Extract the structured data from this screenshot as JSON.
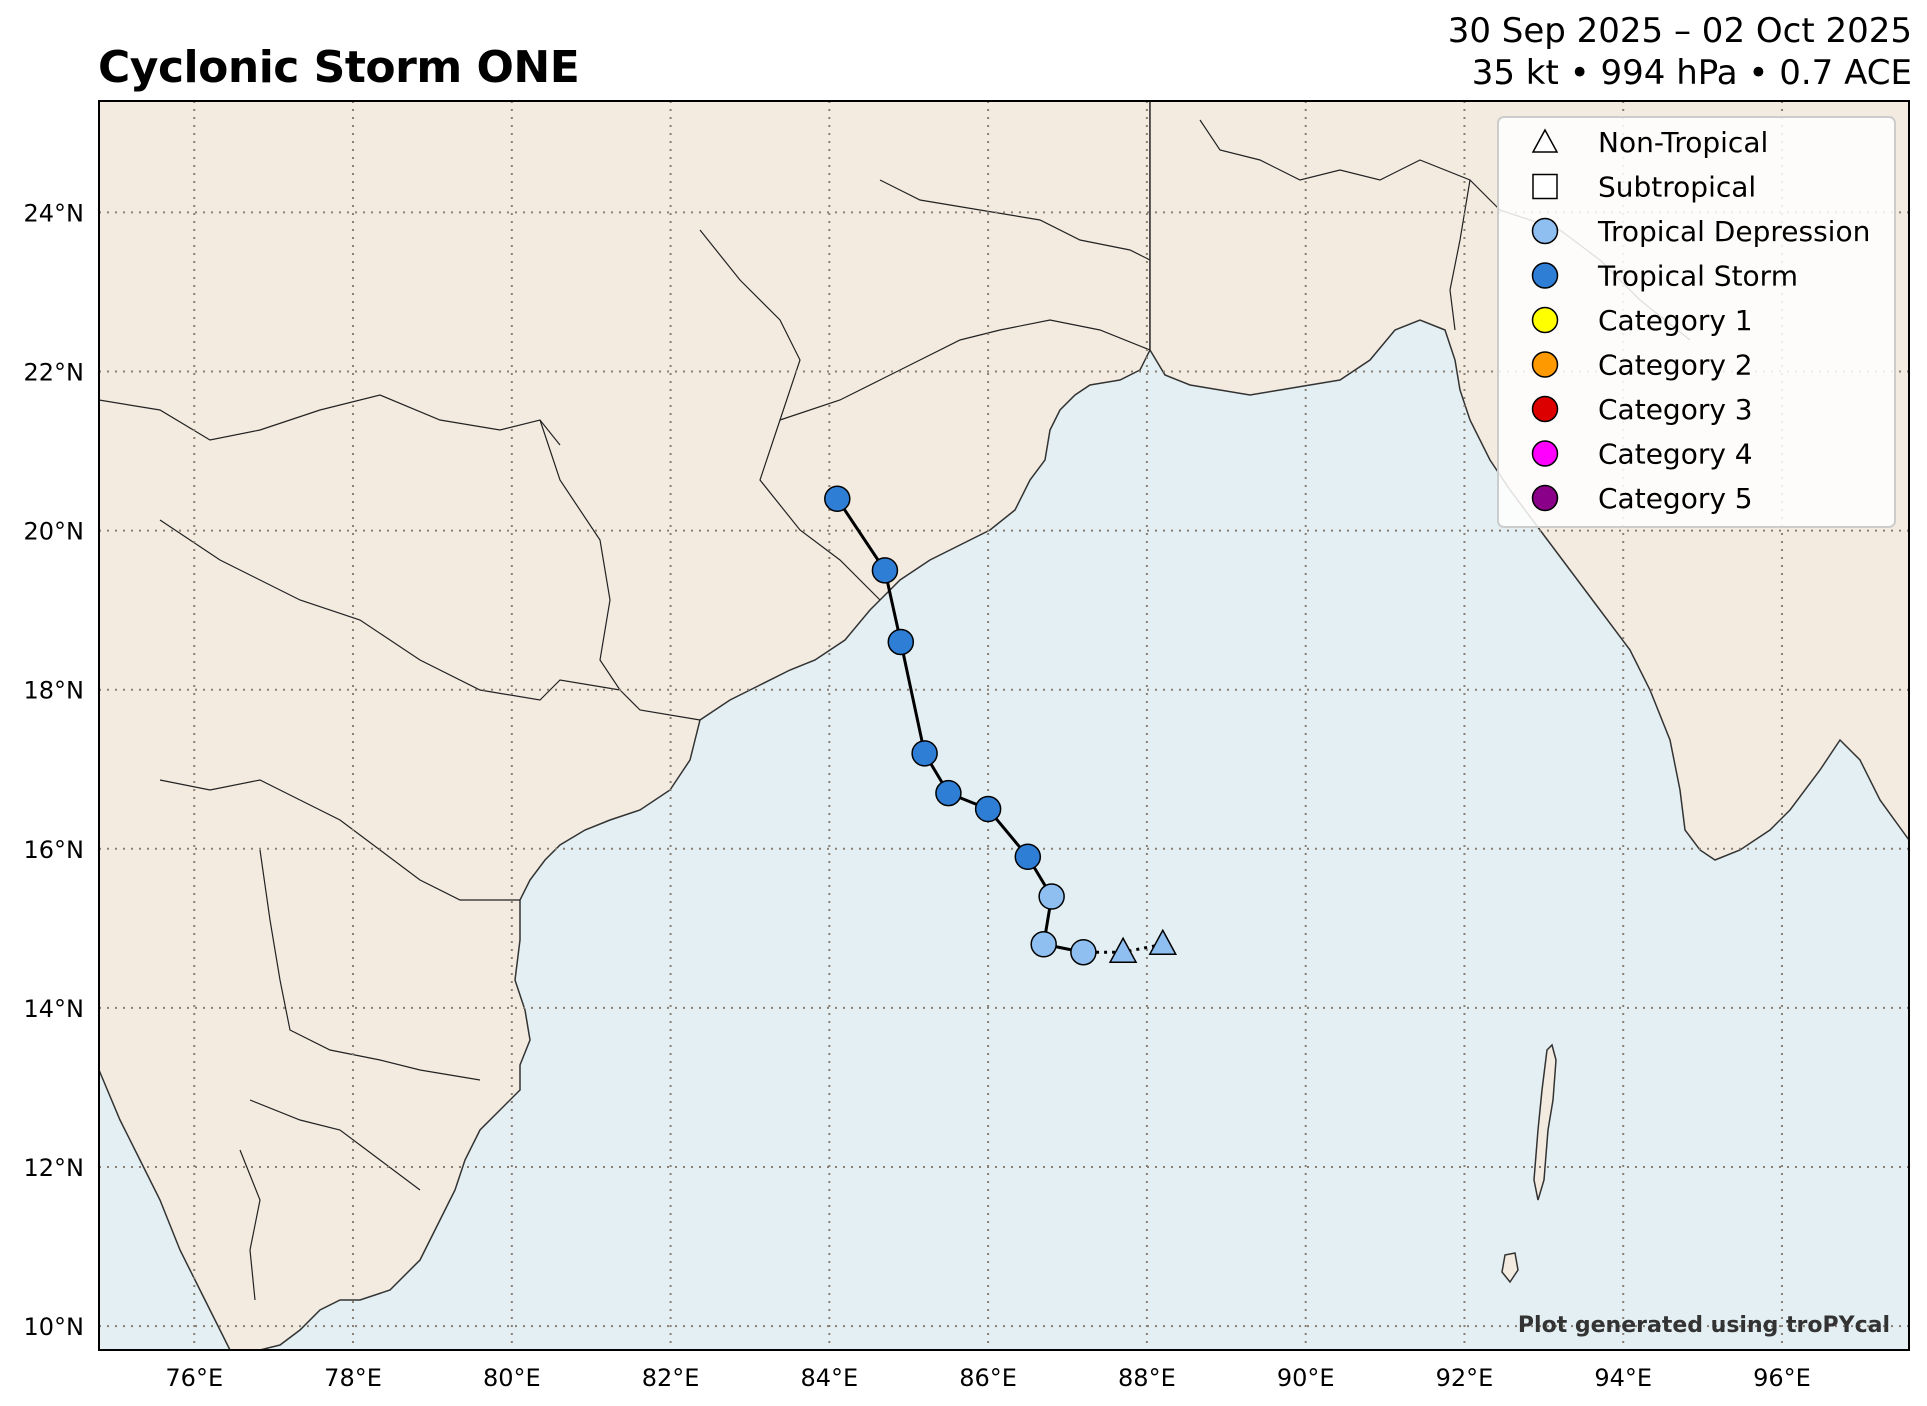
{
  "title": "Cyclonic Storm ONE",
  "subtitle": {
    "dates": "30 Sep 2025 – 02 Oct 2025",
    "stats": "35 kt • 994 hPa • 0.7 ACE"
  },
  "credit": "Plot generated using troPYcal",
  "colors": {
    "land": "#f3ebe0",
    "ocean": "#e3eff2",
    "grid": "#8a7f72",
    "track": "#000000",
    "tropical_depression": "#8fbef0",
    "tropical_storm": "#2f7ed6",
    "category_1": "#ffff00",
    "category_2": "#ff9900",
    "category_3": "#dd0000",
    "category_4": "#ff00ff",
    "category_5": "#8b0088"
  },
  "legend": [
    {
      "label": "Non-Tropical",
      "marker": "triangle",
      "color": "#ffffff"
    },
    {
      "label": "Subtropical",
      "marker": "square",
      "color": "#ffffff"
    },
    {
      "label": "Tropical Depression",
      "marker": "circle",
      "color": "#8fbef0"
    },
    {
      "label": "Tropical Storm",
      "marker": "circle",
      "color": "#2f7ed6"
    },
    {
      "label": "Category 1",
      "marker": "circle",
      "color": "#ffff00"
    },
    {
      "label": "Category 2",
      "marker": "circle",
      "color": "#ff9900"
    },
    {
      "label": "Category 3",
      "marker": "circle",
      "color": "#dd0000"
    },
    {
      "label": "Category 4",
      "marker": "circle",
      "color": "#ff00ff"
    },
    {
      "label": "Category 5",
      "marker": "circle",
      "color": "#8b0088"
    }
  ],
  "map": {
    "lon_range": [
      74.8,
      97.6
    ],
    "lat_range": [
      9.7,
      25.4
    ],
    "lon_ticks": [
      76,
      78,
      80,
      82,
      84,
      86,
      88,
      90,
      92,
      94,
      96
    ],
    "lat_ticks": [
      10,
      12,
      14,
      16,
      18,
      20,
      22,
      24
    ],
    "lon_labels": [
      "76°E",
      "78°E",
      "80°E",
      "82°E",
      "84°E",
      "86°E",
      "88°E",
      "90°E",
      "92°E",
      "94°E",
      "96°E"
    ],
    "lat_labels": [
      "10°N",
      "12°N",
      "14°N",
      "16°N",
      "18°N",
      "20°N",
      "22°N",
      "24°N"
    ],
    "grid": true
  },
  "track": [
    {
      "lon": 88.2,
      "lat": 14.8,
      "type": "non-tropical"
    },
    {
      "lon": 87.7,
      "lat": 14.7,
      "type": "non-tropical"
    },
    {
      "lon": 87.2,
      "lat": 14.7,
      "type": "tropical_depression"
    },
    {
      "lon": 86.7,
      "lat": 14.8,
      "type": "tropical_depression"
    },
    {
      "lon": 86.8,
      "lat": 15.4,
      "type": "tropical_depression"
    },
    {
      "lon": 86.5,
      "lat": 15.9,
      "type": "tropical_storm"
    },
    {
      "lon": 86.0,
      "lat": 16.5,
      "type": "tropical_storm"
    },
    {
      "lon": 85.5,
      "lat": 16.7,
      "type": "tropical_storm"
    },
    {
      "lon": 85.2,
      "lat": 17.2,
      "type": "tropical_storm"
    },
    {
      "lon": 84.9,
      "lat": 18.6,
      "type": "tropical_storm"
    },
    {
      "lon": 84.7,
      "lat": 19.5,
      "type": "tropical_storm"
    },
    {
      "lon": 84.1,
      "lat": 20.4,
      "type": "tropical_storm"
    }
  ]
}
